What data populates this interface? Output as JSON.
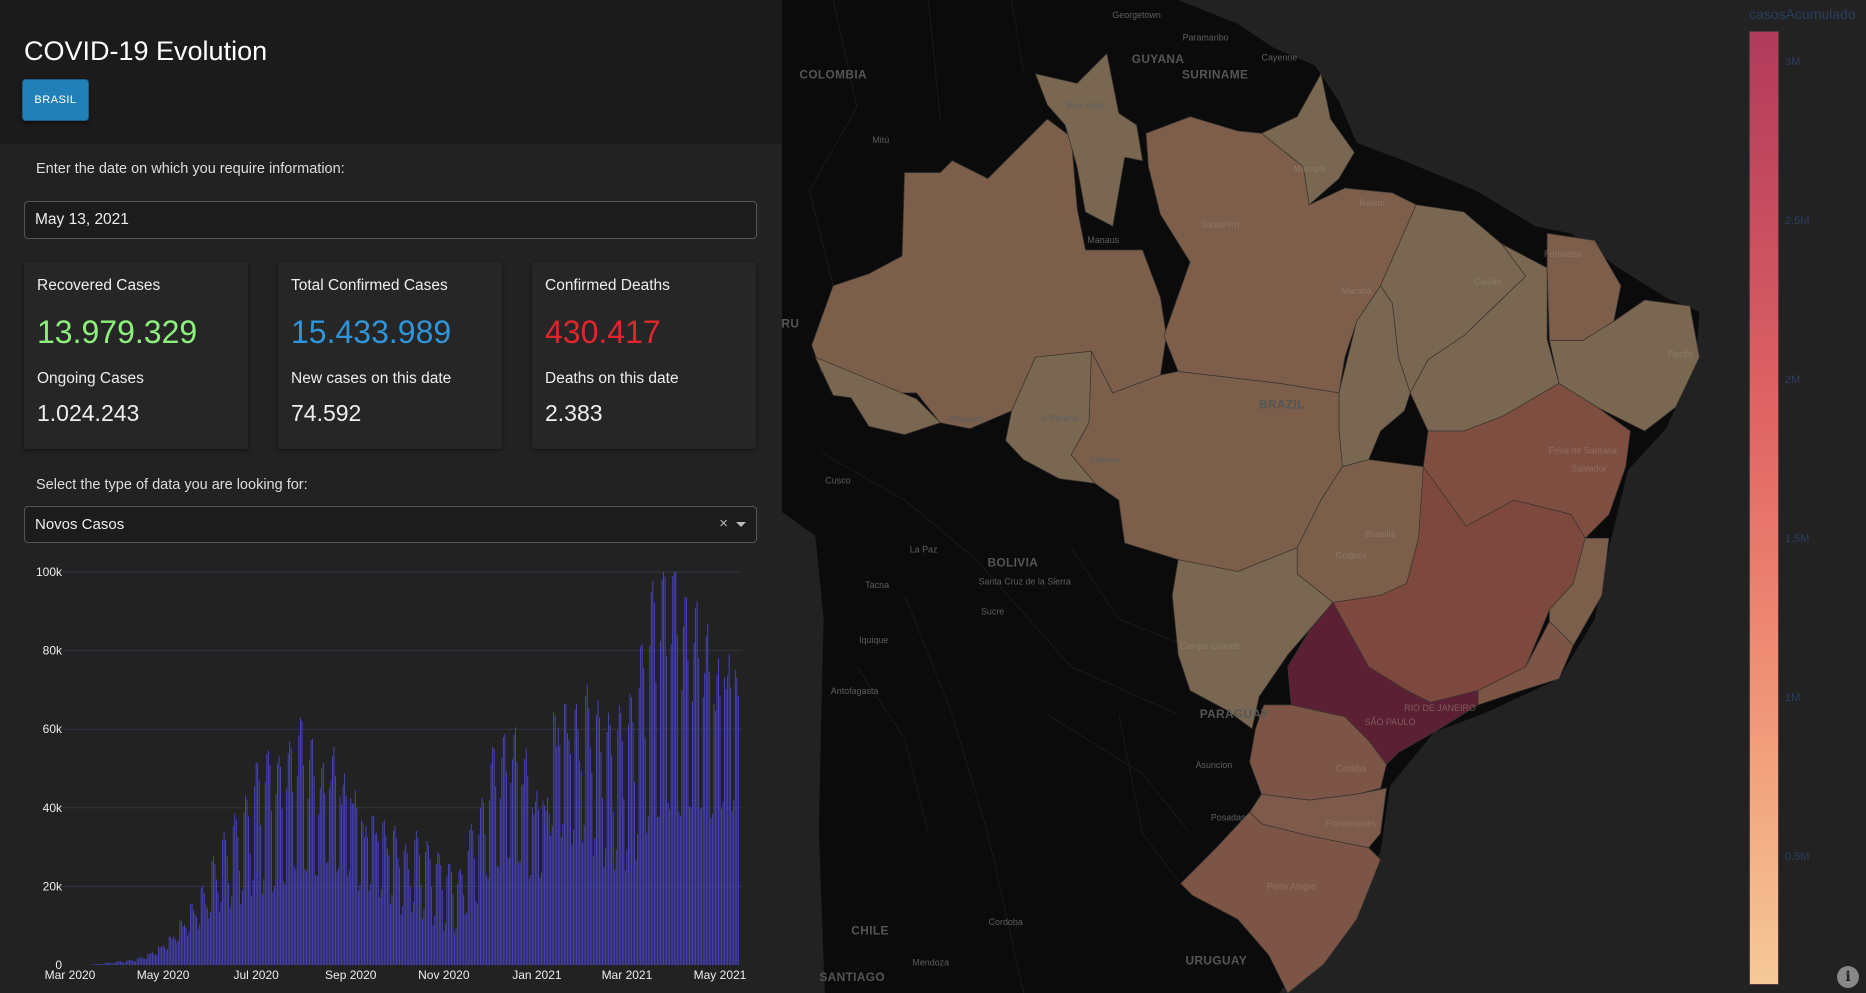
{
  "header": {
    "title": "COVID-19 Evolution",
    "country_button": "BRASIL"
  },
  "date_section": {
    "label": "Enter the date on which you require information:",
    "date_value": "May 13, 2021"
  },
  "cards": [
    {
      "title": "Recovered Cases",
      "value": "13.979.329",
      "value_color": "#8ef07c",
      "sub_title": "Ongoing Cases",
      "sub_value": "1.024.243"
    },
    {
      "title": "Total Confirmed Cases",
      "value": "15.433.989",
      "value_color": "#2f95d8",
      "sub_title": "New cases on this date",
      "sub_value": "74.592"
    },
    {
      "title": "Confirmed Deaths",
      "value": "430.417",
      "value_color": "#e0262d",
      "sub_title": "Deaths on this date",
      "sub_value": "2.383"
    }
  ],
  "type_section": {
    "label": "Select the type of data you are looking for:",
    "selected": "Novos Casos",
    "clear_icon": "×"
  },
  "chart_data": {
    "type": "bar",
    "title": "",
    "xlabel": "",
    "ylabel": "",
    "series_name": "Novos Casos",
    "bar_color": "#4b45c8",
    "start_date": "2020-03-01",
    "end_date": "2021-05-13",
    "granularity": "daily values = weekly_avg × weekday_factor",
    "weekly_avg": [
      0,
      30,
      200,
      450,
      700,
      1000,
      1500,
      2500,
      4000,
      6000,
      9000,
      12000,
      15000,
      20000,
      24000,
      27000,
      30000,
      36000,
      38000,
      37000,
      40000,
      45000,
      42000,
      38000,
      42000,
      38000,
      36000,
      30000,
      30000,
      28000,
      26000,
      22000,
      24000,
      22000,
      20000,
      18000,
      17000,
      25000,
      30000,
      40000,
      43000,
      45000,
      42000,
      35000,
      35000,
      52000,
      52000,
      50000,
      52000,
      48000,
      45000,
      46000,
      48000,
      57000,
      68000,
      72000,
      75000,
      68000,
      68000,
      65000,
      60000,
      63000,
      62000
    ],
    "weekday_factors": [
      0.55,
      0.6,
      1.15,
      1.25,
      1.25,
      1.2,
      1.0
    ],
    "ylim": [
      0,
      100000
    ],
    "yticks": [
      "0",
      "20k",
      "40k",
      "60k",
      "80k",
      "100k"
    ],
    "ytick_values": [
      0,
      20000,
      40000,
      60000,
      80000,
      100000
    ],
    "xticks": [
      "Mar 2020",
      "May 2020",
      "Jul 2020",
      "Sep 2020",
      "Nov 2020",
      "Jan 2021",
      "Mar 2021",
      "May 2021"
    ],
    "xtick_dates": [
      "2020-03-01",
      "2020-05-01",
      "2020-07-01",
      "2020-09-01",
      "2020-11-01",
      "2021-01-01",
      "2021-03-01",
      "2021-05-01"
    ],
    "grid": true
  },
  "map": {
    "colorbar_title": "casosAcumulado",
    "colorbar_ticks": [
      "3M",
      "2.5M",
      "2M",
      "1.5M",
      "1M",
      "0.5M"
    ],
    "colorbar_tick_values": [
      3000000,
      2500000,
      2000000,
      1500000,
      1000000,
      500000
    ],
    "colorbar_range": [
      100000,
      3100000
    ],
    "colors": {
      "low": "#7a6751",
      "mid": "#7d5e4b",
      "high": "#7e4e41",
      "max": "#5c2034",
      "land": "#0b0b0b",
      "ocean": "#222222"
    },
    "labels": [
      "Georgetown",
      "Paramaribo",
      "GUYANA",
      "Cayenne",
      "COLOMBIA",
      "SURINAME",
      "Boa Vista",
      "Mitú",
      "Macapá",
      "Belém",
      "Santarém",
      "Manaus",
      "Fortaleza",
      "Caxias",
      "Marabá",
      "RU",
      "Recife",
      "BRAZIL",
      "Riberalta",
      "Ji-Paraná",
      "Feira de Santana",
      "Salvador",
      "Vilhena",
      "Cusco",
      "Brasília",
      "La Paz",
      "Goiânia",
      "BOLIVIA",
      "Santa Cruz de la Sierra",
      "Tacna",
      "Sucre",
      "Iquique",
      "Campo Grande",
      "RIO DE JANEIRO",
      "PARAGUAY",
      "SÃO PAULO",
      "Antofagasta",
      "Asuncion",
      "Curitiba",
      "Posadas",
      "Florianópolis",
      "Porto Alegre",
      "Cordoba",
      "CHILE",
      "Mendoza",
      "URUGUAY",
      "SANTIAGO"
    ],
    "info_icon": "i"
  }
}
